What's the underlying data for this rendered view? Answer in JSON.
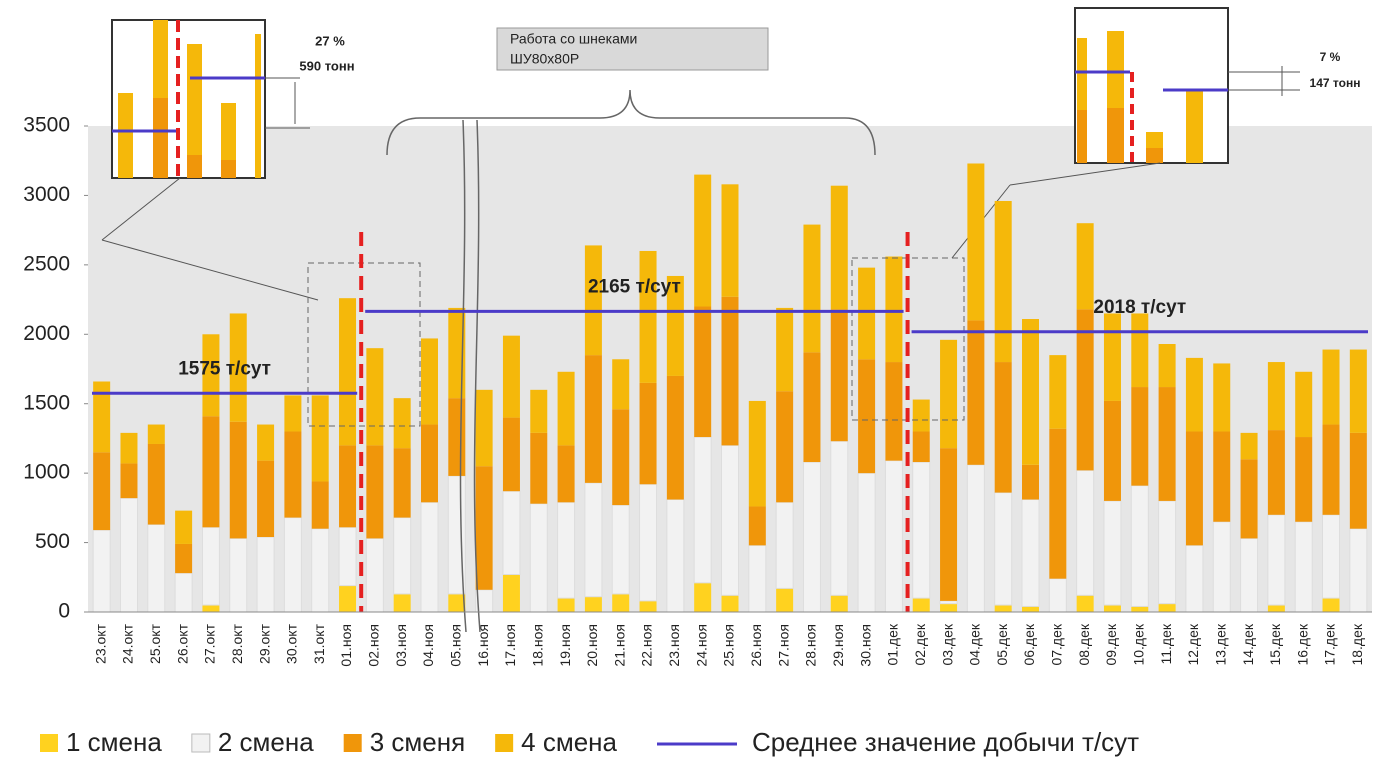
{
  "chart_data": {
    "type": "stacked_bar",
    "categories": [
      "23.окт",
      "24.окт",
      "25.окт",
      "26.окт",
      "27.окт",
      "28.окт",
      "29.окт",
      "30.окт",
      "31.окт",
      "01.ноя",
      "02.ноя",
      "03.ноя",
      "04.ноя",
      "05.ноя",
      "16.ноя",
      "17.ноя",
      "18.ноя",
      "19.ноя",
      "20.ноя",
      "21.ноя",
      "22.ноя",
      "23.ноя",
      "24.ноя",
      "25.ноя",
      "26.ноя",
      "27.ноя",
      "28.ноя",
      "29.ноя",
      "30.ноя",
      "01.дек",
      "02.дек",
      "03.дек",
      "04.дек",
      "05.дек",
      "06.дек",
      "07.дек",
      "08.дек",
      "09.дек",
      "10.дек",
      "11.дек",
      "12.дек",
      "13.дек",
      "14.дек",
      "15.дек",
      "16.дек",
      "17.дек",
      "18.дек"
    ],
    "series": [
      {
        "name": "1 смена",
        "color": "#ffd21f",
        "values": [
          0,
          0,
          0,
          0,
          50,
          0,
          0,
          0,
          0,
          190,
          0,
          130,
          0,
          130,
          0,
          270,
          0,
          100,
          110,
          130,
          80,
          0,
          210,
          120,
          0,
          170,
          0,
          120,
          0,
          0,
          100,
          60,
          0,
          50,
          40,
          0,
          120,
          50,
          40,
          60,
          0,
          0,
          0,
          50,
          0,
          100,
          0
        ]
      },
      {
        "name": "2 смена",
        "color": "#f2f2f2",
        "values": [
          590,
          820,
          630,
          280,
          560,
          530,
          540,
          680,
          600,
          420,
          530,
          550,
          790,
          850,
          160,
          600,
          780,
          690,
          820,
          640,
          840,
          810,
          1050,
          1080,
          480,
          620,
          1080,
          1110,
          1000,
          1090,
          980,
          20,
          1060,
          810,
          770,
          240,
          900,
          750,
          870,
          740,
          480,
          650,
          530,
          650,
          650,
          600,
          600
        ]
      },
      {
        "name": "3 сменя",
        "color": "#f0960a",
        "values": [
          560,
          250,
          580,
          210,
          800,
          840,
          550,
          620,
          340,
          590,
          670,
          500,
          560,
          560,
          890,
          530,
          510,
          410,
          920,
          690,
          730,
          890,
          940,
          1070,
          280,
          800,
          790,
          950,
          820,
          710,
          220,
          1100,
          1040,
          940,
          250,
          1080,
          1160,
          720,
          710,
          820,
          820,
          650,
          570,
          610,
          610,
          650,
          690
        ]
      },
      {
        "name": "4 смена",
        "color": "#f5b80a",
        "values": [
          510,
          220,
          140,
          240,
          590,
          780,
          260,
          260,
          620,
          1060,
          700,
          360,
          620,
          650,
          550,
          590,
          310,
          530,
          790,
          360,
          950,
          720,
          950,
          810,
          760,
          600,
          920,
          890,
          660,
          760,
          230,
          780,
          1130,
          1160,
          1050,
          530,
          620,
          630,
          530,
          310,
          530,
          490,
          190,
          490,
          470,
          540,
          600
        ]
      }
    ],
    "averages": {
      "name": "Среднее значение добычи т/сут",
      "color": "#4b3bc8",
      "lines": [
        {
          "label": "1575 т/сут",
          "value": 1575,
          "from": "23.окт",
          "to": "01.ноя"
        },
        {
          "label": "2165 т/сут",
          "value": 2165,
          "from": "02.ноя",
          "to": "01.дек"
        },
        {
          "label": "2018 т/сут",
          "value": 2018,
          "from": "02.дек",
          "to": "18.дек"
        }
      ]
    },
    "annotations": {
      "box": [
        "Работа со шнеками",
        "ШУ80х80Р"
      ],
      "left": [
        "27 %",
        "590 тонн"
      ],
      "right": [
        "7 %",
        "147 тонн"
      ]
    },
    "ylim": [
      0,
      3500
    ],
    "yticks": [
      0,
      500,
      1000,
      1500,
      2000,
      2500,
      3000,
      3500
    ],
    "legend": "bottom"
  }
}
